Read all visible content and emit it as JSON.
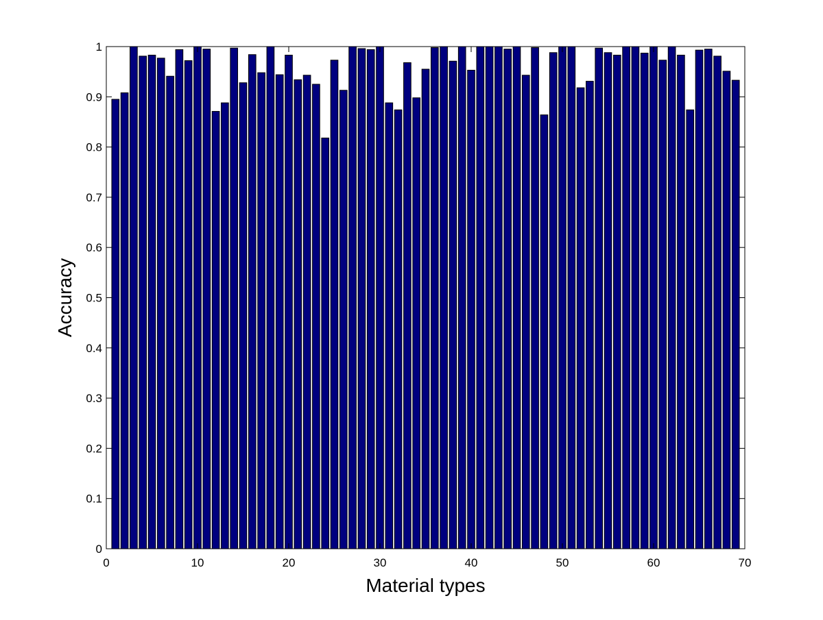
{
  "chart_data": {
    "type": "bar",
    "title": "",
    "xlabel": "Material types",
    "ylabel": "Accuracy",
    "xlim": [
      0,
      70
    ],
    "ylim": [
      0,
      1
    ],
    "xticks": [
      0,
      10,
      20,
      30,
      40,
      50,
      60,
      70
    ],
    "yticks": [
      0,
      0.1,
      0.2,
      0.3,
      0.4,
      0.5,
      0.6,
      0.7,
      0.8,
      0.9,
      1
    ],
    "xtick_labels": [
      "0",
      "10",
      "20",
      "30",
      "40",
      "50",
      "60",
      "70"
    ],
    "ytick_labels": [
      "0",
      "0.1",
      "0.2",
      "0.3",
      "0.4",
      "0.5",
      "0.6",
      "0.7",
      "0.8",
      "0.9",
      "1"
    ],
    "grid": false,
    "legend": "none",
    "bar_color": "#00007f",
    "categories": [
      1,
      2,
      3,
      4,
      5,
      6,
      7,
      8,
      9,
      10,
      11,
      12,
      13,
      14,
      15,
      16,
      17,
      18,
      19,
      20,
      21,
      22,
      23,
      24,
      25,
      26,
      27,
      28,
      29,
      30,
      31,
      32,
      33,
      34,
      35,
      36,
      37,
      38,
      39,
      40,
      41,
      42,
      43,
      44,
      45,
      46,
      47,
      48,
      49,
      50,
      51,
      52,
      53,
      54,
      55,
      56,
      57,
      58,
      59,
      60,
      61,
      62,
      63,
      64,
      65,
      66,
      67,
      68,
      69
    ],
    "values": [
      0.895,
      0.908,
      1.0,
      0.981,
      0.983,
      0.977,
      0.941,
      0.994,
      0.972,
      1.0,
      0.995,
      0.871,
      0.888,
      0.997,
      0.928,
      0.984,
      0.948,
      1.0,
      0.944,
      0.983,
      0.934,
      0.943,
      0.925,
      0.818,
      0.973,
      0.913,
      1.0,
      0.996,
      0.994,
      1.0,
      0.888,
      0.874,
      0.968,
      0.898,
      0.955,
      0.998,
      1.0,
      0.971,
      1.0,
      0.953,
      1.0,
      1.0,
      1.0,
      0.995,
      1.0,
      0.943,
      0.998,
      0.864,
      0.988,
      1.0,
      1.0,
      0.918,
      0.931,
      0.997,
      0.988,
      0.983,
      1.0,
      1.0,
      0.987,
      1.0,
      0.973,
      1.0,
      0.983,
      0.874,
      0.993,
      0.995,
      0.981,
      0.951,
      0.933
    ]
  }
}
